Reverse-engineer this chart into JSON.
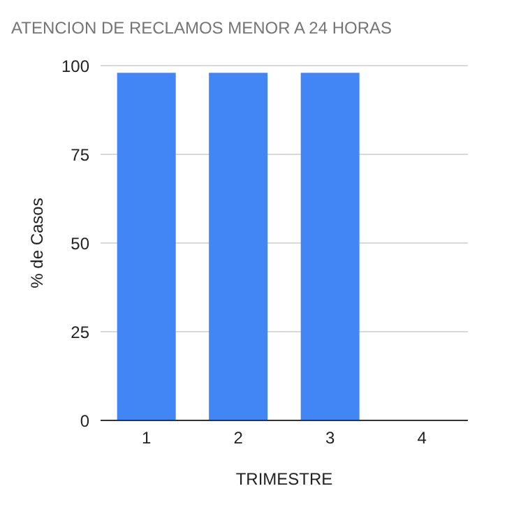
{
  "chart_data": {
    "type": "bar",
    "title": "ATENCION DE RECLAMOS MENOR A 24 HORAS",
    "xlabel": "TRIMESTRE",
    "ylabel": "% de Casos",
    "categories": [
      "1",
      "2",
      "3",
      "4"
    ],
    "values": [
      98,
      98,
      98,
      0
    ],
    "color": "#4285f4",
    "ylim": [
      0,
      100
    ],
    "yticks": [
      0,
      25,
      50,
      75,
      100
    ],
    "grid": "y"
  }
}
